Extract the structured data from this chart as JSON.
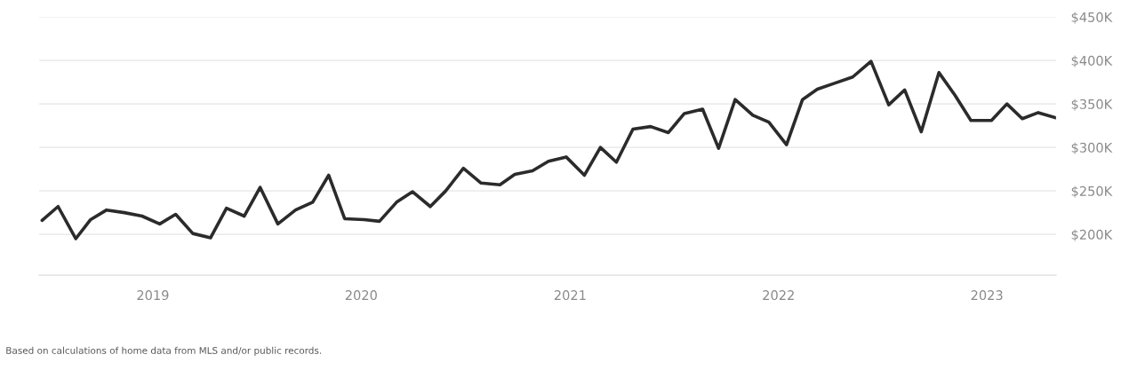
{
  "chart_data": {
    "type": "line",
    "x": [
      "2018-06-21",
      "2018-07-19",
      "2018-08-19",
      "2018-09-14",
      "2018-10-12",
      "2018-11-12",
      "2018-12-13",
      "2019-01-13",
      "2019-02-10",
      "2019-03-12",
      "2019-04-12",
      "2019-05-10",
      "2019-06-10",
      "2019-07-08",
      "2019-08-08",
      "2019-09-08",
      "2019-10-08",
      "2019-11-05",
      "2019-12-03",
      "2020-01-06",
      "2020-02-02",
      "2020-03-03",
      "2020-03-31",
      "2020-05-01",
      "2020-05-28",
      "2020-06-28",
      "2020-07-29",
      "2020-08-31",
      "2020-09-26",
      "2020-10-27",
      "2020-11-24",
      "2020-12-25",
      "2021-01-26",
      "2021-02-23",
      "2021-03-23",
      "2021-04-21",
      "2021-05-22",
      "2021-06-22",
      "2021-07-20",
      "2021-08-21",
      "2021-09-18",
      "2021-10-17",
      "2021-11-17",
      "2021-12-15",
      "2022-01-15",
      "2022-02-12",
      "2022-03-10",
      "2022-04-10",
      "2022-05-11",
      "2022-06-12",
      "2022-07-13",
      "2022-08-10",
      "2022-09-08",
      "2022-10-09",
      "2022-11-06",
      "2022-12-04",
      "2023-01-09",
      "2023-02-05",
      "2023-03-04",
      "2023-04-01",
      "2023-05-02"
    ],
    "series": [
      {
        "color": "#2b2b2b",
        "values": [
          216,
          232,
          195,
          217,
          228,
          225,
          221,
          212,
          223,
          201,
          196,
          230,
          221,
          254,
          212,
          228,
          237,
          268,
          218,
          217,
          215,
          237,
          249,
          232,
          250,
          276,
          259,
          257,
          269,
          273,
          284,
          289,
          268,
          300,
          283,
          321,
          324,
          317,
          339,
          344,
          299,
          355,
          337,
          329,
          303,
          355,
          367,
          374,
          381,
          399,
          349,
          366,
          318,
          386,
          360,
          331,
          331,
          350,
          333,
          340,
          334
        ]
      }
    ],
    "xlim": [
      "2018-06-16",
      "2023-05-02"
    ],
    "xticks": [
      {
        "value": "2019-01-01",
        "label": "2019"
      },
      {
        "value": "2020-01-01",
        "label": "2020"
      },
      {
        "value": "2021-01-01",
        "label": "2021"
      },
      {
        "value": "2022-01-01",
        "label": "2022"
      },
      {
        "value": "2023-01-01",
        "label": "2023"
      }
    ],
    "ylim": [
      153,
      450
    ],
    "yticks": [
      {
        "value": 200,
        "label": "$200K"
      },
      {
        "value": 250,
        "label": "$250K"
      },
      {
        "value": 300,
        "label": "$300K"
      },
      {
        "value": 350,
        "label": "$350K"
      },
      {
        "value": 400,
        "label": "$400K"
      },
      {
        "value": 450,
        "label": "$450K"
      }
    ],
    "grid": "y",
    "annotations": [
      "Based on calculations of home data from MLS and/or public records."
    ]
  }
}
